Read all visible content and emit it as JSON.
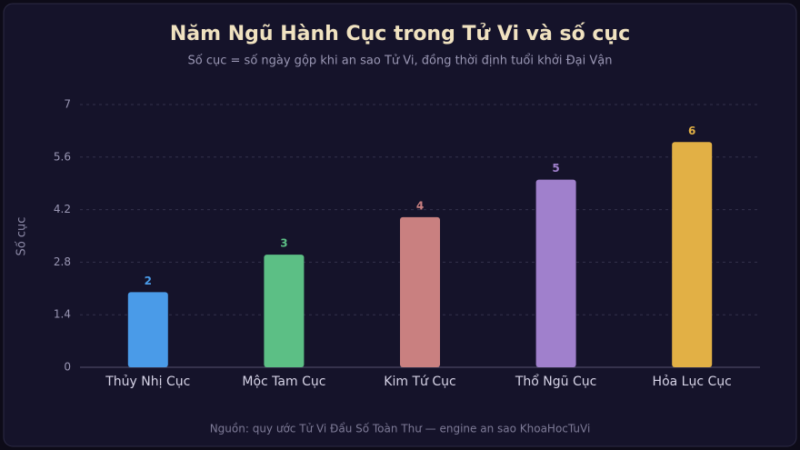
{
  "chart_data": {
    "type": "bar",
    "title": "Năm Ngũ Hành Cục trong Tử Vi và số cục",
    "subtitle": "Số cục = số ngày gộp khi an sao Tử Vi, đồng thời định tuổi khởi Đại Vận",
    "y_label": "Số cục",
    "source": "Nguồn: quy ước Tử Vi Đẩu Số Toàn Thư — engine an sao KhoaHocTuVi",
    "categories": [
      "Thủy Nhị Cục",
      "Mộc Tam Cục",
      "Kim Tứ Cục",
      "Thổ Ngũ Cục",
      "Hỏa Lục Cục"
    ],
    "values": [
      2,
      3,
      4,
      5,
      6
    ],
    "colors": [
      "#4a9be8",
      "#5cbf85",
      "#c98080",
      "#a080cc",
      "#e2b045"
    ],
    "ylim": [
      0,
      7
    ],
    "yticks": [
      0,
      1.4,
      2.8,
      4.2,
      5.6,
      7
    ],
    "grid": true
  }
}
